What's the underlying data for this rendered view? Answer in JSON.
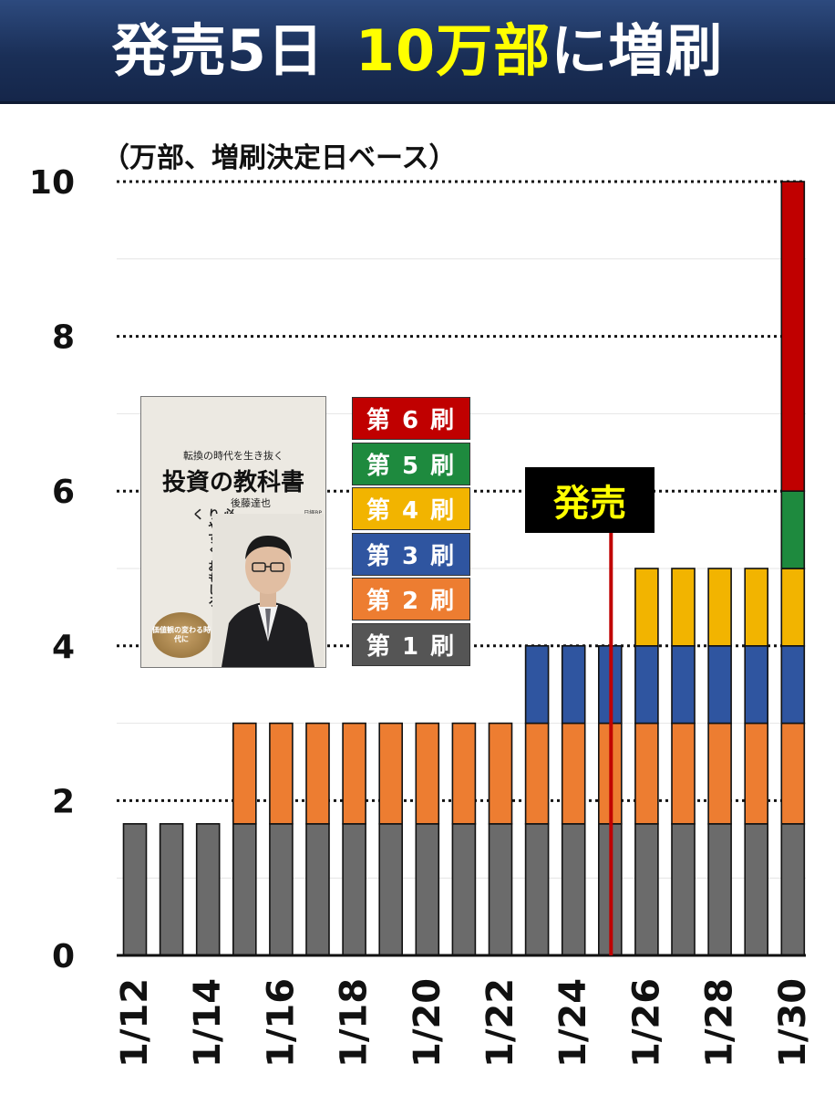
{
  "header": {
    "title_part1": "発売5日",
    "title_part2": "10万部",
    "title_part3": "に増刷"
  },
  "unit_label": "（万部、増刷決定日ベース）",
  "colors": {
    "print_1": "#6b6b6b",
    "print_2": "#ed7d31",
    "print_3": "#2f55a0",
    "print_4": "#f2b400",
    "print_5": "#1e8a3e",
    "print_6": "#c00000",
    "release_line": "#c00000"
  },
  "legend": [
    {
      "label": "第 6 刷",
      "color": "#c00000"
    },
    {
      "label": "第 5 刷",
      "color": "#1e8a3e"
    },
    {
      "label": "第 4 刷",
      "color": "#f2b400"
    },
    {
      "label": "第 3 刷",
      "color": "#2f55a0"
    },
    {
      "label": "第 2 刷",
      "color": "#ed7d31"
    },
    {
      "label": "第 1 刷",
      "color": "#555555"
    }
  ],
  "release_marker": {
    "label": "発売",
    "date": "1/25"
  },
  "book": {
    "subtitle": "転換の時代を生き抜く",
    "title": "投資の教科書",
    "author": "後藤達也",
    "catch": "必要な知識を わかりやすく おもしろく",
    "publisher": "日経BP",
    "badge": "価値観の変わる時代に"
  },
  "chart_data": {
    "type": "bar",
    "stacked": true,
    "title": "",
    "ylabel": "",
    "ylim": [
      0,
      10
    ],
    "yticks": [
      0,
      2,
      4,
      6,
      8,
      10
    ],
    "grid": true,
    "categories": [
      "1/12",
      "1/13",
      "1/14",
      "1/15",
      "1/16",
      "1/17",
      "1/18",
      "1/19",
      "1/20",
      "1/21",
      "1/22",
      "1/23",
      "1/24",
      "1/25",
      "1/26",
      "1/27",
      "1/28",
      "1/29",
      "1/30"
    ],
    "x_tick_labels": [
      "1/12",
      "1/14",
      "1/16",
      "1/18",
      "1/20",
      "1/22",
      "1/24",
      "1/26",
      "1/28",
      "1/30"
    ],
    "series": [
      {
        "name": "第 1 刷",
        "color": "#6b6b6b",
        "values": [
          1.7,
          1.7,
          1.7,
          1.7,
          1.7,
          1.7,
          1.7,
          1.7,
          1.7,
          1.7,
          1.7,
          1.7,
          1.7,
          1.7,
          1.7,
          1.7,
          1.7,
          1.7,
          1.7
        ]
      },
      {
        "name": "第 2 刷",
        "color": "#ed7d31",
        "values": [
          0,
          0,
          0,
          1.3,
          1.3,
          1.3,
          1.3,
          1.3,
          1.3,
          1.3,
          1.3,
          1.3,
          1.3,
          1.3,
          1.3,
          1.3,
          1.3,
          1.3,
          1.3
        ]
      },
      {
        "name": "第 3 刷",
        "color": "#2f55a0",
        "values": [
          0,
          0,
          0,
          0,
          0,
          0,
          0,
          0,
          0,
          0,
          0,
          1,
          1,
          1,
          1,
          1,
          1,
          1,
          1
        ]
      },
      {
        "name": "第 4 刷",
        "color": "#f2b400",
        "values": [
          0,
          0,
          0,
          0,
          0,
          0,
          0,
          0,
          0,
          0,
          0,
          0,
          0,
          0,
          1,
          1,
          1,
          1,
          1
        ]
      },
      {
        "name": "第 5 刷",
        "color": "#1e8a3e",
        "values": [
          0,
          0,
          0,
          0,
          0,
          0,
          0,
          0,
          0,
          0,
          0,
          0,
          0,
          0,
          0,
          0,
          0,
          0,
          1
        ]
      },
      {
        "name": "第 6 刷",
        "color": "#c00000",
        "values": [
          0,
          0,
          0,
          0,
          0,
          0,
          0,
          0,
          0,
          0,
          0,
          0,
          0,
          0,
          0,
          0,
          0,
          0,
          4
        ]
      }
    ]
  }
}
